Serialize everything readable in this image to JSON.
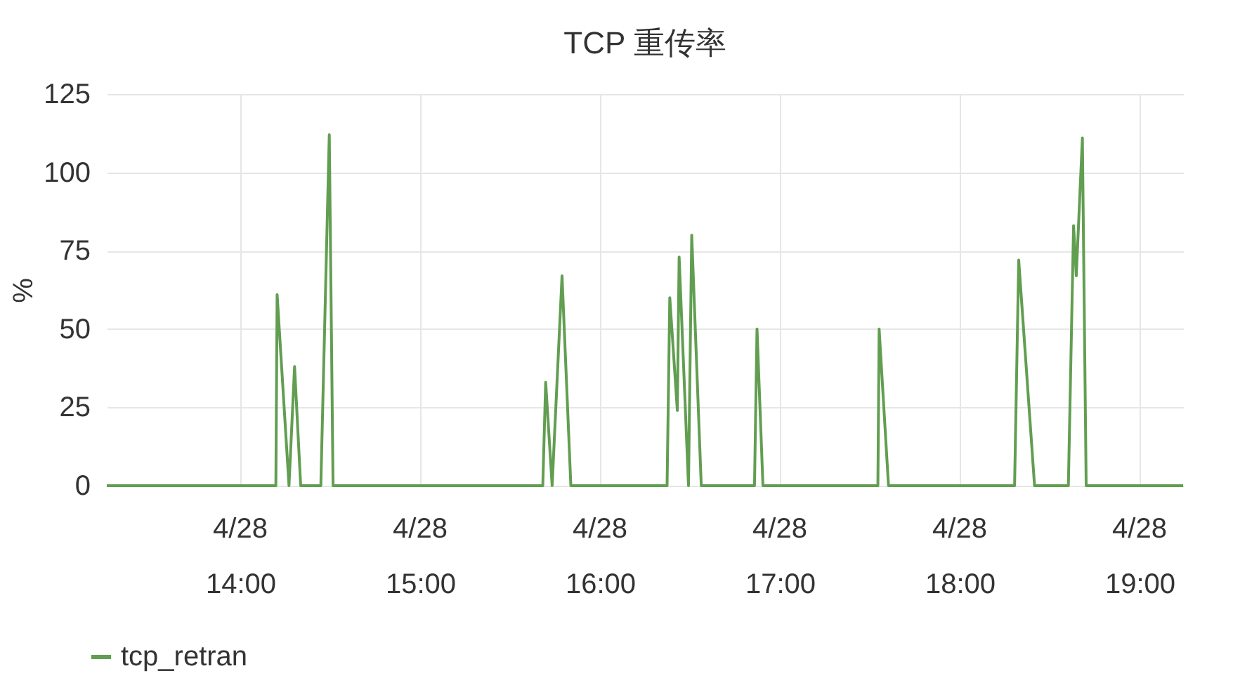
{
  "chart_data": {
    "type": "line",
    "title": "TCP 重传率",
    "ylabel": "%",
    "series": [
      {
        "name": "tcp_retran",
        "color": "#629e51",
        "x": [
          13.258,
          14.198,
          14.205,
          14.271,
          14.302,
          14.336,
          14.448,
          14.495,
          14.516,
          15.682,
          15.698,
          15.734,
          15.789,
          15.838,
          16.373,
          16.388,
          16.43,
          16.44,
          16.492,
          16.51,
          16.563,
          16.859,
          16.873,
          16.906,
          17.545,
          17.552,
          17.604,
          18.305,
          18.328,
          18.416,
          18.604,
          18.633,
          18.648,
          18.682,
          18.703,
          19.242
        ],
        "values": [
          0,
          0,
          61,
          0,
          38,
          0,
          0,
          112,
          0,
          0,
          33,
          0,
          67,
          0,
          0,
          60,
          24,
          73,
          0,
          80,
          0,
          0,
          50,
          0,
          0,
          50,
          0,
          0,
          72,
          0,
          0,
          83,
          67,
          111,
          0,
          0
        ]
      }
    ],
    "xlim": [
      13.258,
      19.242
    ],
    "xticks": [
      {
        "value": 14,
        "label": "14:00"
      },
      {
        "value": 15,
        "label": "15:00"
      },
      {
        "value": 16,
        "label": "16:00"
      },
      {
        "value": 17,
        "label": "17:00"
      },
      {
        "value": 18,
        "label": "18:00"
      },
      {
        "value": 19,
        "label": "19:00"
      }
    ],
    "annotations": [
      "4/28",
      "4/28",
      "4/28",
      "4/28",
      "4/28",
      "4/28"
    ],
    "ylim": [
      0,
      125
    ],
    "yticks": [
      0,
      25,
      50,
      75,
      100,
      125
    ],
    "grid": true,
    "legend": "bottom left"
  }
}
